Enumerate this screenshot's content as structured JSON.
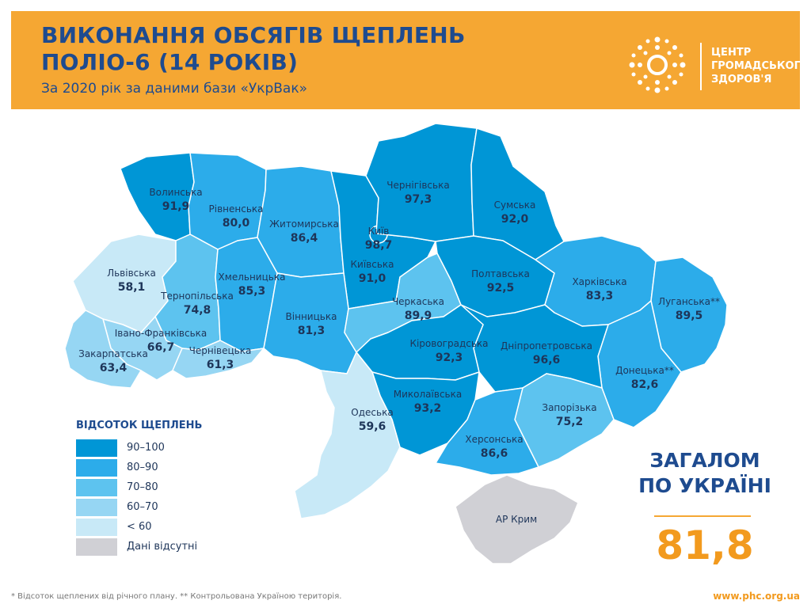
{
  "header": {
    "title_line1": "ВИКОНАННЯ ОБСЯГІВ ЩЕПЛЕНЬ",
    "title_line2": "ПОЛІО-6 (14 РОКІВ)",
    "subtitle": "За 2020 рік за даними бази «УкрВак»",
    "logo": {
      "line1": "ЦЕНТР",
      "line2": "ГРОМАДСЬКОГО",
      "line3": "ЗДОРОВ'Я"
    }
  },
  "colors": {
    "header_bg": "#f5a733",
    "title": "#1e4b8f",
    "accent_orange": "#f29a1e",
    "bin_90_100": "#0096d6",
    "bin_80_90": "#2cacea",
    "bin_70_80": "#5dc3ef",
    "bin_60_70": "#96d6f3",
    "bin_lt_60": "#c8e9f7",
    "bin_nodata": "#d0d0d5"
  },
  "regions": [
    {
      "name": "Волинська",
      "value": "91,9"
    },
    {
      "name": "Рівненська",
      "value": "80,0"
    },
    {
      "name": "Житомирська",
      "value": "86,4"
    },
    {
      "name": "Київ",
      "value": "98,7"
    },
    {
      "name": "Чернігівська",
      "value": "97,3"
    },
    {
      "name": "Сумська",
      "value": "92,0"
    },
    {
      "name": "Львівська",
      "value": "58,1"
    },
    {
      "name": "Тернопільська",
      "value": "74,8"
    },
    {
      "name": "Хмельницька",
      "value": "85,3"
    },
    {
      "name": "Київська",
      "value": "91,0"
    },
    {
      "name": "Полтавська",
      "value": "92,5"
    },
    {
      "name": "Харківська",
      "value": "83,3"
    },
    {
      "name": "Луганська**",
      "value": "89,5"
    },
    {
      "name": "Черкаська",
      "value": "89,9"
    },
    {
      "name": "Вінницька",
      "value": "81,3"
    },
    {
      "name": "Івано-Франківська",
      "value": "66,7"
    },
    {
      "name": "Закарпатська",
      "value": "63,4"
    },
    {
      "name": "Чернівецька",
      "value": "61,3"
    },
    {
      "name": "Кіровоградська",
      "value": "92,3"
    },
    {
      "name": "Дніпропетровська",
      "value": "96,6"
    },
    {
      "name": "Донецька**",
      "value": "82,6"
    },
    {
      "name": "Одеська",
      "value": "59,6"
    },
    {
      "name": "Миколаївська",
      "value": "93,2"
    },
    {
      "name": "Запорізька",
      "value": "75,2"
    },
    {
      "name": "Херсонська",
      "value": "86,6"
    },
    {
      "name": "АР Крим",
      "value": ""
    }
  ],
  "legend": {
    "title": "ВІДСОТОК ЩЕПЛЕНЬ",
    "items": [
      {
        "label": "90–100",
        "color": "#0096d6"
      },
      {
        "label": "80–90",
        "color": "#2cacea"
      },
      {
        "label": "70–80",
        "color": "#5dc3ef"
      },
      {
        "label": "60–70",
        "color": "#96d6f3"
      },
      {
        "label": "< 60",
        "color": "#c8e9f7"
      },
      {
        "label": "Дані відсутні",
        "color": "#d0d0d5"
      }
    ]
  },
  "total": {
    "label_line1": "ЗАГАЛОМ",
    "label_line2": "ПО УКРАЇНІ",
    "value": "81,8"
  },
  "footer": {
    "note": "* Відсоток щеплених від річного плану. ** Контрольована Україною територія.",
    "url": "www.phc.org.ua"
  }
}
